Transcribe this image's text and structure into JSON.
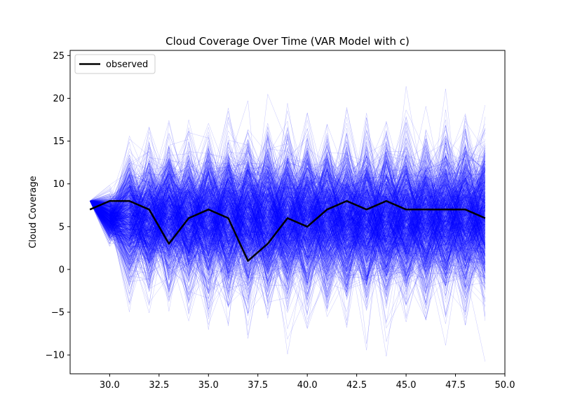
{
  "chart_data": {
    "type": "line",
    "title": "Cloud Coverage Over Time (VAR Model with c)",
    "xlabel": "",
    "ylabel": "Cloud Coverage",
    "xlim": [
      28.0,
      50.0
    ],
    "ylim": [
      -12.2,
      25.6
    ],
    "xticks": [
      30.0,
      32.5,
      35.0,
      37.5,
      40.0,
      42.5,
      45.0,
      47.5,
      50.0
    ],
    "xtick_labels": [
      "30.0",
      "32.5",
      "35.0",
      "37.5",
      "40.0",
      "42.5",
      "45.0",
      "47.5",
      "50.0"
    ],
    "yticks": [
      -10,
      -5,
      0,
      5,
      10,
      15,
      20,
      25
    ],
    "ytick_labels": [
      "−10",
      "−5",
      "0",
      "5",
      "10",
      "15",
      "20",
      "25"
    ],
    "grid": false,
    "legend": {
      "placement": "upper-left",
      "entries": [
        "observed"
      ]
    },
    "series": [
      {
        "name": "observed",
        "color": "#000000",
        "x": [
          29,
          30,
          31,
          32,
          33,
          34,
          35,
          36,
          37,
          38,
          39,
          40,
          41,
          42,
          43,
          44,
          45,
          46,
          47,
          48,
          49
        ],
        "y": [
          7,
          8,
          8,
          7,
          3,
          6,
          7,
          6,
          1,
          3,
          6,
          5,
          7,
          8,
          7,
          8,
          7,
          7,
          7,
          7,
          6
        ]
      }
    ],
    "simulations": {
      "color": "#0000ff",
      "count": 1000,
      "start_x": 29,
      "start_y": 8,
      "x": [
        29,
        30,
        31,
        32,
        33,
        34,
        35,
        36,
        37,
        38,
        39,
        40,
        41,
        42,
        43,
        44,
        45,
        46,
        47,
        48,
        49
      ],
      "mean": 6,
      "spread_sd": [
        0,
        1.2,
        3.2,
        3.4,
        3.5,
        3.6,
        3.8,
        3.9,
        4.0,
        4.0,
        4.0,
        4.0,
        4.0,
        4.0,
        4.0,
        4.0,
        4.0,
        4.0,
        4.0,
        4.0,
        4.0
      ]
    }
  }
}
